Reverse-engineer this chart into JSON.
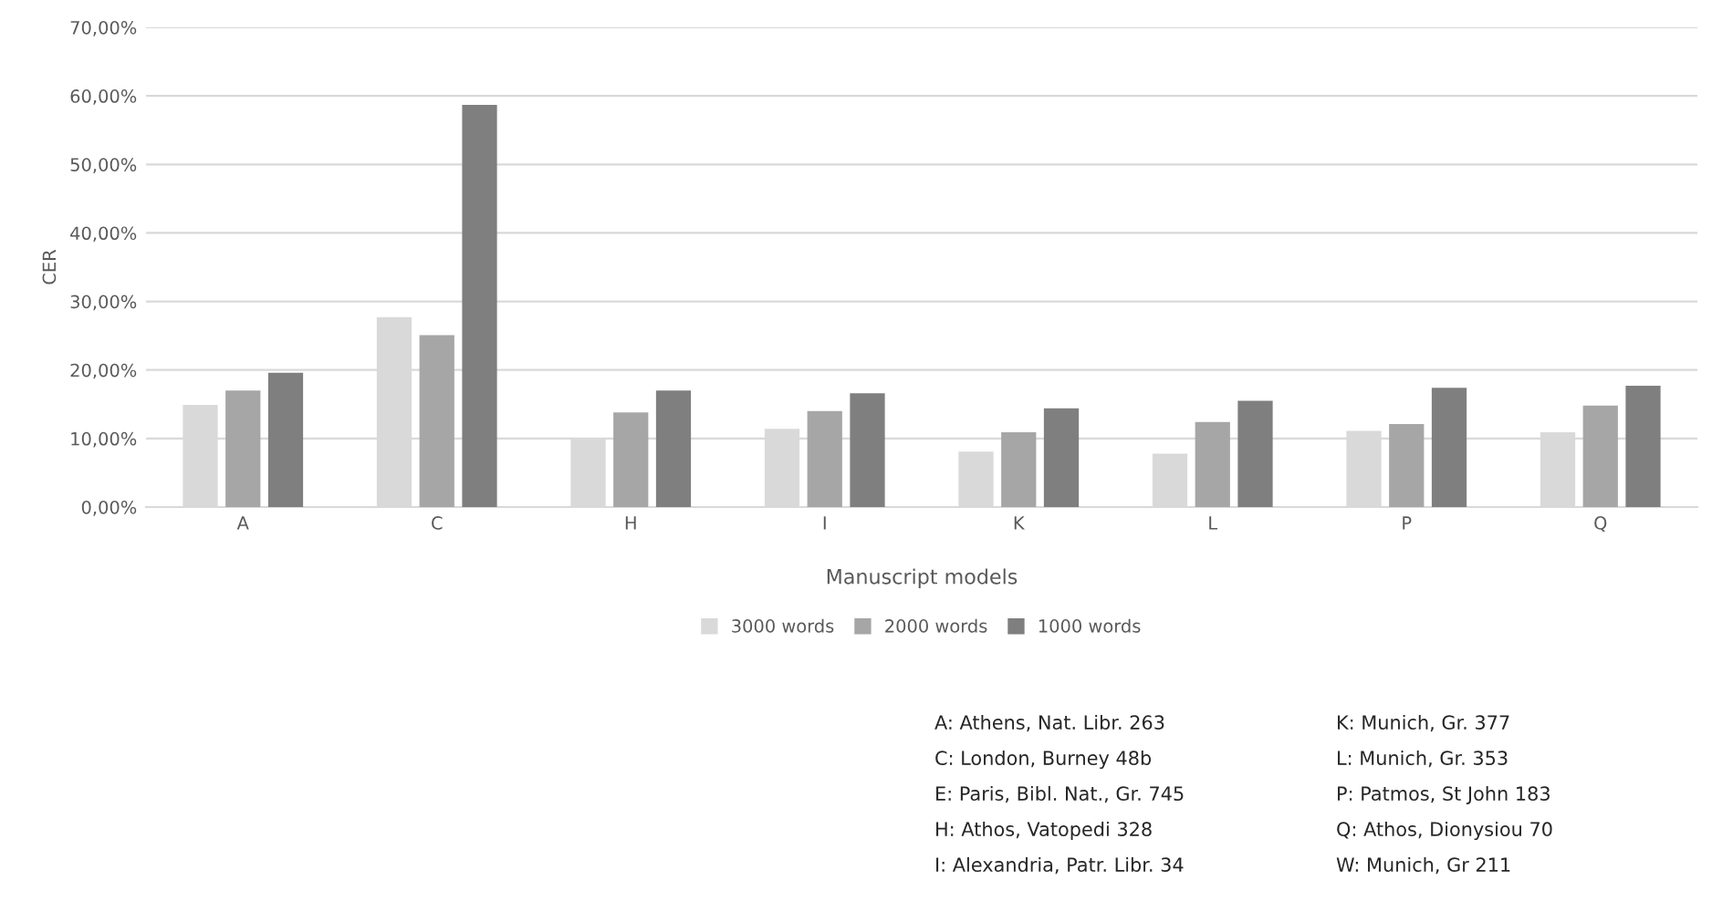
{
  "chart_data": {
    "type": "bar",
    "xlabel": "Manuscript models",
    "ylabel": "CER",
    "categories": [
      "A",
      "C",
      "H",
      "I",
      "K",
      "L",
      "P",
      "Q"
    ],
    "series": [
      {
        "name": "3000 words",
        "color": "#d9d9d9",
        "values": [
          14.9,
          27.7,
          9.9,
          11.4,
          8.1,
          7.8,
          11.1,
          10.9
        ]
      },
      {
        "name": "2000 words",
        "color": "#a6a6a6",
        "values": [
          17.0,
          25.1,
          13.8,
          14.0,
          10.9,
          12.4,
          12.1,
          14.8
        ]
      },
      {
        "name": "1000 words",
        "color": "#7f7f7f",
        "values": [
          19.6,
          58.7,
          17.0,
          16.6,
          14.4,
          15.5,
          17.4,
          17.7
        ]
      }
    ],
    "ylim": [
      0,
      70
    ],
    "yticks": [
      {
        "value": 0,
        "label": "0,00%"
      },
      {
        "value": 10,
        "label": "10,00%"
      },
      {
        "value": 20,
        "label": "20,00%"
      },
      {
        "value": 30,
        "label": "30,00%"
      },
      {
        "value": 40,
        "label": "40,00%"
      },
      {
        "value": 50,
        "label": "50,00%"
      },
      {
        "value": 60,
        "label": "60,00%"
      },
      {
        "value": 70,
        "label": "70,00%"
      }
    ],
    "grid": "y",
    "legend": "bottom",
    "annotations": [
      "A: Athens, Nat. Libr. 263",
      "C: London, Burney 48b",
      "E: Paris, Bibl. Nat., Gr. 745",
      "H: Athos, Vatopedi 328",
      "I: Alexandria, Patr. Libr. 34",
      "K: Munich, Gr. 377",
      "L: Munich, Gr. 353",
      "P: Patmos, St John 183",
      "Q: Athos, Dionysiou 70",
      "W: Munich, Gr 211"
    ]
  }
}
